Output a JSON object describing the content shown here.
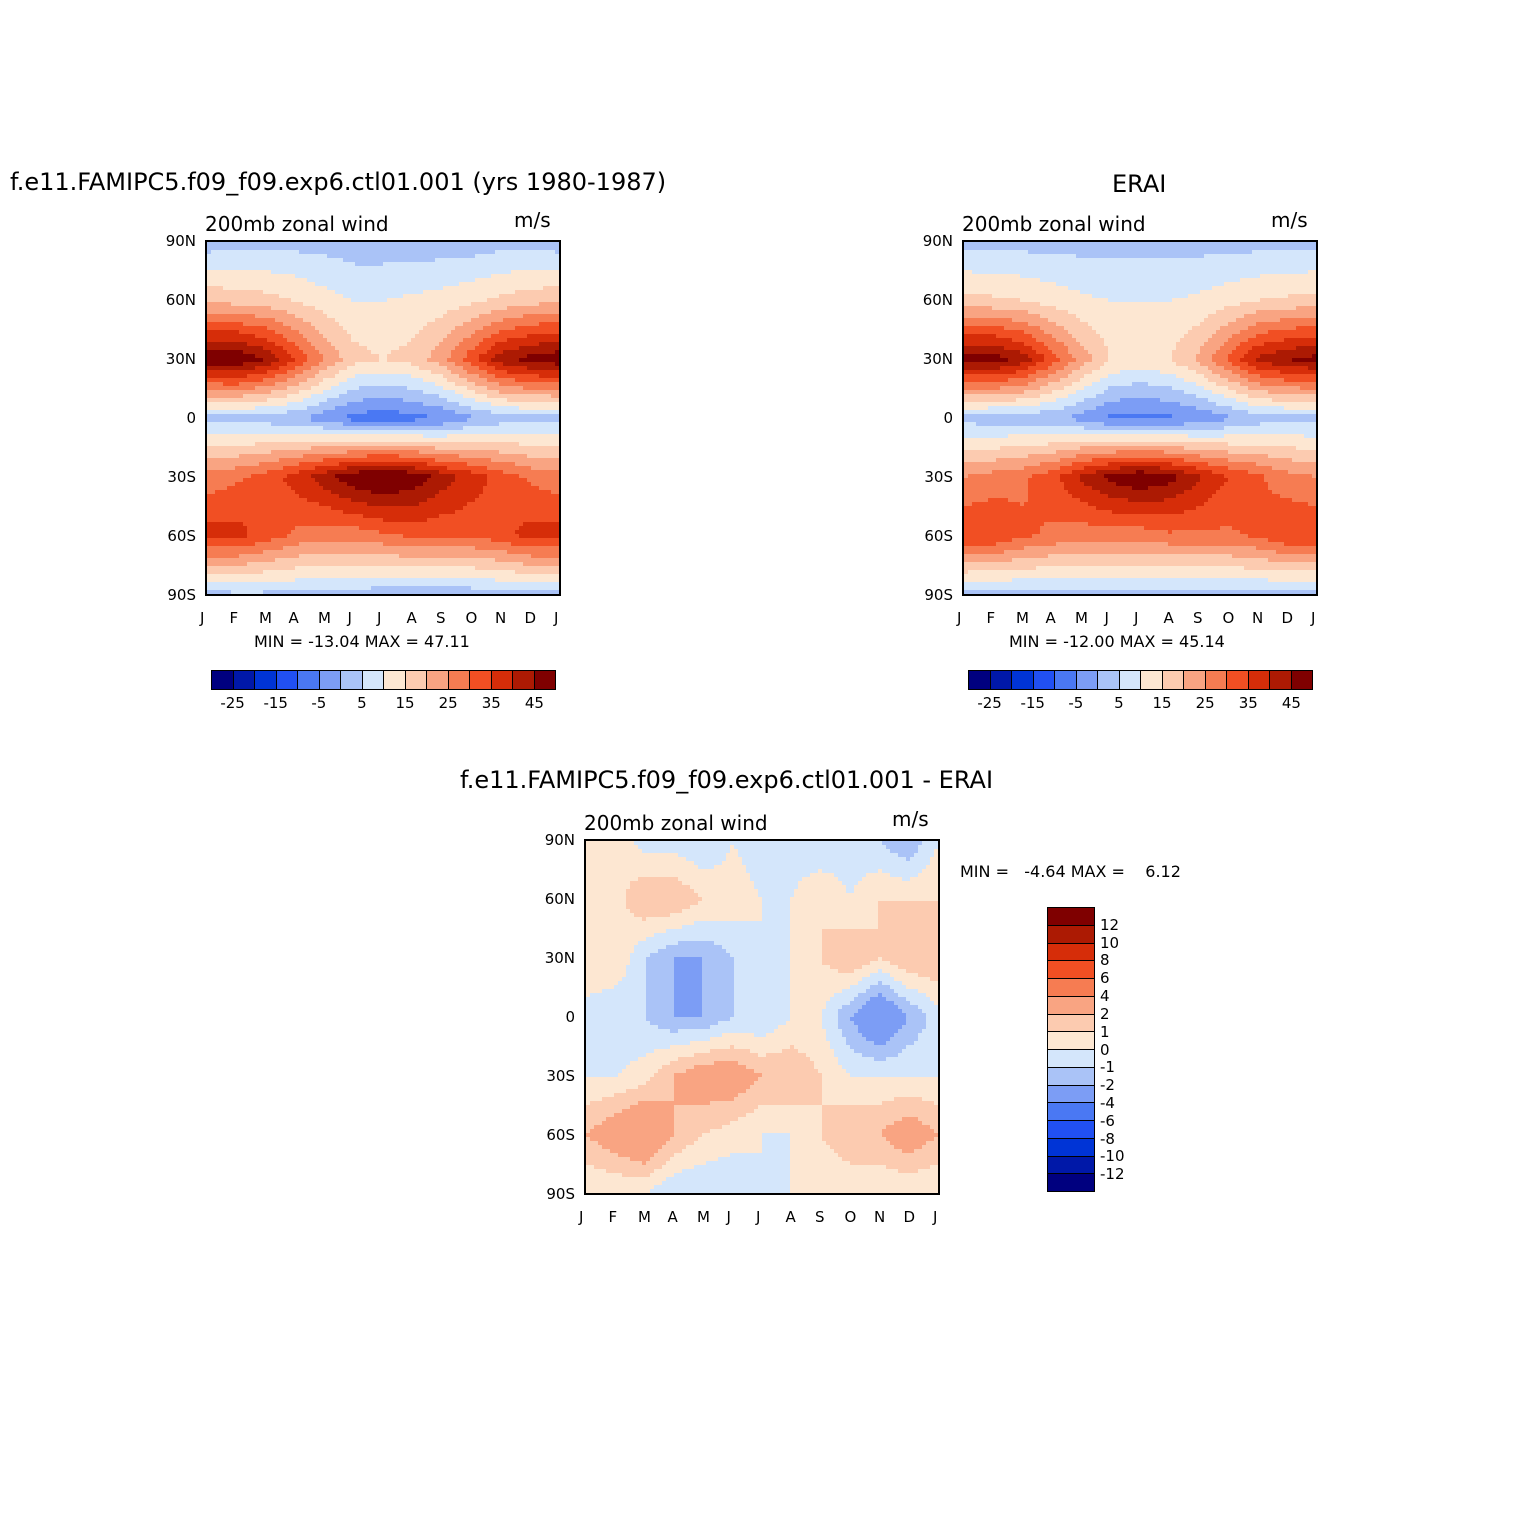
{
  "panel_left": {
    "title": "f.e11.FAMIPC5.f09_f09.exp6.ctl01.001 (yrs 1980-1987)",
    "left_label": "200mb zonal wind",
    "right_label": "m/s",
    "minmax": "MIN = -13.04 MAX = 47.11"
  },
  "panel_right": {
    "title": "ERAI",
    "left_label": "200mb zonal wind",
    "right_label": "m/s",
    "minmax": "MIN = -12.00 MAX = 45.14"
  },
  "panel_diff": {
    "title": "f.e11.FAMIPC5.f09_f09.exp6.ctl01.001 - ERAI",
    "left_label": "200mb zonal wind",
    "right_label": "m/s",
    "minmax": "MIN =   -4.64 MAX =    6.12"
  },
  "axes": {
    "y_ticks": [
      "90N",
      "60N",
      "30N",
      "0",
      "30S",
      "60S",
      "90S"
    ],
    "x_ticks": [
      "J",
      "F",
      "M",
      "A",
      "M",
      "J",
      "J",
      "A",
      "S",
      "O",
      "N",
      "D",
      "J"
    ]
  },
  "colorbar_main": {
    "colors": [
      "#00007f",
      "#0018a8",
      "#0034d6",
      "#2150f2",
      "#4a78f3",
      "#7c9df5",
      "#aac3f7",
      "#d4e6fb",
      "#fde7d2",
      "#fccbb0",
      "#f9a482",
      "#f67c52",
      "#f14f23",
      "#d62d09",
      "#ac1a03",
      "#7f0000"
    ],
    "labels": [
      "-25",
      "-15",
      "-5",
      "5",
      "15",
      "25",
      "35",
      "45"
    ]
  },
  "colorbar_diff": {
    "colors": [
      "#7f0000",
      "#ac1a03",
      "#d62d09",
      "#f14f23",
      "#f67c52",
      "#f9a482",
      "#fccbb0",
      "#fde7d2",
      "#d4e6fb",
      "#aac3f7",
      "#7c9df5",
      "#4a78f3",
      "#2150f2",
      "#0034d6",
      "#0018a8",
      "#00007f"
    ],
    "labels": [
      "12",
      "10",
      "8",
      "6",
      "4",
      "2",
      "1",
      "0",
      "-1",
      "-2",
      "-4",
      "-6",
      "-8",
      "-10",
      "-12"
    ]
  },
  "chart_data": [
    {
      "type": "heatmap",
      "title": "f.e11.FAMIPC5.f09_f09.exp6.ctl01.001 (yrs 1980-1987)",
      "variable": "200mb zonal wind",
      "units": "m/s",
      "x": [
        "Jan",
        "Feb",
        "Mar",
        "Apr",
        "May",
        "Jun",
        "Jul",
        "Aug",
        "Sep",
        "Oct",
        "Nov",
        "Dec",
        "Jan"
      ],
      "y": [
        90,
        60,
        30,
        0,
        -30,
        -60,
        -90
      ],
      "values": [
        [
          -3,
          -2,
          -2,
          -2,
          -2,
          -3,
          -3,
          -3,
          -3,
          -3,
          -2,
          -2,
          -3
        ],
        [
          14,
          13,
          12,
          10,
          7,
          5,
          5,
          6,
          7,
          9,
          11,
          13,
          14
        ],
        [
          44,
          45,
          40,
          30,
          20,
          12,
          10,
          12,
          18,
          28,
          38,
          42,
          44
        ],
        [
          -2,
          -2,
          -3,
          -4,
          -8,
          -12,
          -13,
          -12,
          -10,
          -6,
          -3,
          -2,
          -2
        ],
        [
          22,
          24,
          27,
          32,
          38,
          44,
          47,
          44,
          38,
          33,
          28,
          24,
          22
        ],
        [
          32,
          32,
          28,
          24,
          22,
          22,
          24,
          26,
          26,
          26,
          28,
          32,
          32
        ],
        [
          -2,
          -1,
          -1,
          -1,
          -2,
          -2,
          -3,
          -4,
          -4,
          -3,
          -2,
          -2,
          -2
        ]
      ],
      "min": -13.04,
      "max": 47.11
    },
    {
      "type": "heatmap",
      "title": "ERAI",
      "variable": "200mb zonal wind",
      "units": "m/s",
      "x": [
        "Jan",
        "Feb",
        "Mar",
        "Apr",
        "May",
        "Jun",
        "Jul",
        "Aug",
        "Sep",
        "Oct",
        "Nov",
        "Dec",
        "Jan"
      ],
      "y": [
        90,
        60,
        30,
        0,
        -30,
        -60,
        -90
      ],
      "values": [
        [
          -2,
          -2,
          -2,
          -2,
          -2,
          -2,
          -2,
          -2,
          -2,
          -2,
          -2,
          -2,
          -2
        ],
        [
          12,
          11,
          10,
          8,
          6,
          5,
          5,
          5,
          6,
          8,
          10,
          11,
          12
        ],
        [
          42,
          43,
          38,
          28,
          18,
          10,
          8,
          10,
          16,
          26,
          36,
          40,
          42
        ],
        [
          -2,
          -3,
          -3,
          -4,
          -7,
          -11,
          -12,
          -11,
          -9,
          -6,
          -3,
          -2,
          -2
        ],
        [
          20,
          22,
          24,
          28,
          36,
          42,
          45,
          42,
          36,
          30,
          26,
          22,
          20
        ],
        [
          30,
          30,
          26,
          24,
          22,
          22,
          22,
          24,
          24,
          24,
          26,
          30,
          30
        ],
        [
          -2,
          -2,
          -2,
          -2,
          -2,
          -2,
          -2,
          -2,
          -2,
          -2,
          -2,
          -2,
          -2
        ]
      ],
      "min": -12.0,
      "max": 45.14
    },
    {
      "type": "heatmap",
      "title": "f.e11.FAMIPC5.f09_f09.exp6.ctl01.001 - ERAI",
      "variable": "200mb zonal wind",
      "units": "m/s",
      "x": [
        "Jan",
        "Feb",
        "Mar",
        "Apr",
        "May",
        "Jun",
        "Jul",
        "Aug",
        "Sep",
        "Oct",
        "Nov",
        "Dec",
        "Jan"
      ],
      "y": [
        90,
        60,
        30,
        0,
        -30,
        -60,
        -90
      ],
      "values": [
        [
          0.5,
          1,
          -0.5,
          -0.5,
          -1,
          0,
          -0.5,
          -0.5,
          -1,
          -0.5,
          -1,
          -2,
          0
        ],
        [
          1,
          0.5,
          2,
          2,
          1,
          0.5,
          0,
          0,
          1,
          0,
          1,
          1,
          1
        ],
        [
          1,
          1,
          -1,
          -2,
          -2,
          -1,
          0,
          0,
          1,
          2,
          1,
          2,
          2
        ],
        [
          -0.5,
          -1,
          -1,
          -2,
          -2,
          -1,
          -1,
          0,
          0,
          -2,
          -4,
          -2,
          -0.5
        ],
        [
          0,
          0,
          0.5,
          2,
          3,
          3,
          2,
          2,
          1,
          0,
          0,
          0,
          0
        ],
        [
          2,
          3,
          4,
          2,
          1,
          0.5,
          0,
          0,
          1,
          2,
          2,
          3,
          2
        ],
        [
          0,
          0,
          0,
          -1,
          -1,
          -1,
          0,
          0,
          0,
          0,
          0,
          0,
          0
        ]
      ],
      "min": -4.64,
      "max": 6.12
    }
  ]
}
